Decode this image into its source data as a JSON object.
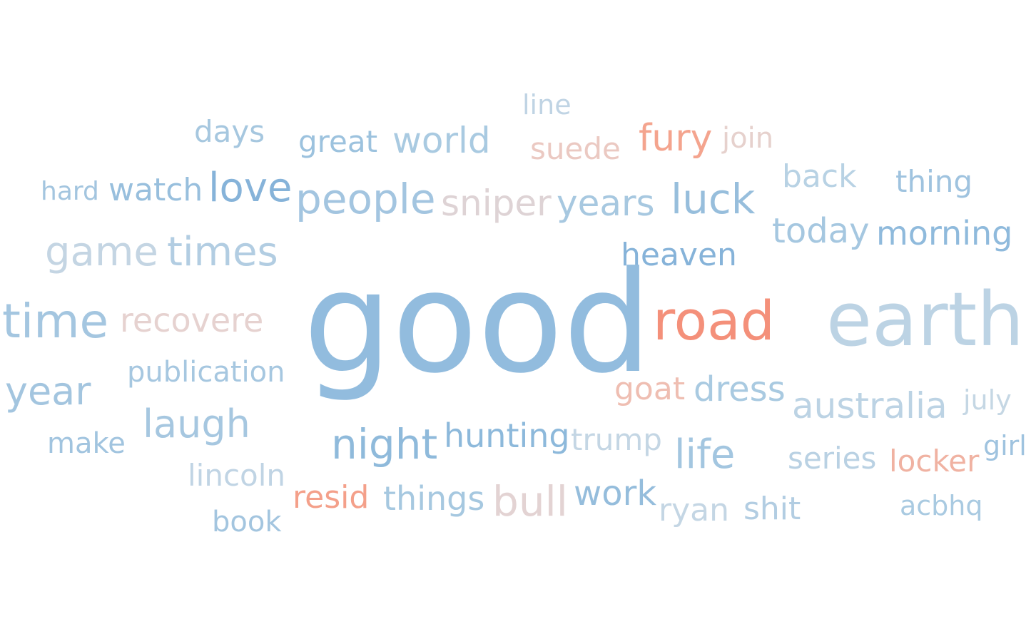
{
  "words": [
    {
      "text": "line",
      "color": "#c0d4e4"
    },
    {
      "text": "days",
      "color": "#a6c7df"
    },
    {
      "text": "great",
      "color": "#9cc2de"
    },
    {
      "text": "world",
      "color": "#a9cae1"
    },
    {
      "text": "suede",
      "color": "#ebc9c2"
    },
    {
      "text": "fury",
      "color": "#f4a48e"
    },
    {
      "text": "join",
      "color": "#e6d1cd"
    },
    {
      "text": "back",
      "color": "#b8d2e4"
    },
    {
      "text": "thing",
      "color": "#9fc3df"
    },
    {
      "text": "hard",
      "color": "#a3c5df"
    },
    {
      "text": "watch",
      "color": "#98bfdd"
    },
    {
      "text": "love",
      "color": "#86b3d9"
    },
    {
      "text": "people",
      "color": "#a3c5e0"
    },
    {
      "text": "sniper",
      "color": "#ded3d5"
    },
    {
      "text": "years",
      "color": "#a7c8e0"
    },
    {
      "text": "luck",
      "color": "#97bedc"
    },
    {
      "text": "today",
      "color": "#a5c7e0"
    },
    {
      "text": "morning",
      "color": "#8fbadc"
    },
    {
      "text": "game",
      "color": "#c4d5e3"
    },
    {
      "text": "times",
      "color": "#b2cde2"
    },
    {
      "text": "heaven",
      "color": "#86b3d9"
    },
    {
      "text": "time",
      "color": "#a4c6e0"
    },
    {
      "text": "recovere",
      "color": "#e6d2d0"
    },
    {
      "text": "good",
      "color": "#92bcde"
    },
    {
      "text": "road",
      "color": "#f4907a"
    },
    {
      "text": "earth",
      "color": "#bcd3e4"
    },
    {
      "text": "publication",
      "color": "#a6c7e0"
    },
    {
      "text": "year",
      "color": "#a3c5df"
    },
    {
      "text": "goat",
      "color": "#efbeb2"
    },
    {
      "text": "dress",
      "color": "#a9cae1"
    },
    {
      "text": "australia",
      "color": "#bcd3e4"
    },
    {
      "text": "july",
      "color": "#c5d7e4"
    },
    {
      "text": "laugh",
      "color": "#a6c7e0"
    },
    {
      "text": "night",
      "color": "#8fbadb"
    },
    {
      "text": "hunting",
      "color": "#8db9db"
    },
    {
      "text": "trump",
      "color": "#c4d6e4"
    },
    {
      "text": "life",
      "color": "#a3c6e0"
    },
    {
      "text": "make",
      "color": "#a1c4df"
    },
    {
      "text": "series",
      "color": "#b9d1e3"
    },
    {
      "text": "locker",
      "color": "#f0b2a2"
    },
    {
      "text": "girl",
      "color": "#9fc3df"
    },
    {
      "text": "lincoln",
      "color": "#c0d4e4"
    },
    {
      "text": "resid",
      "color": "#f4a08a"
    },
    {
      "text": "things",
      "color": "#a6c8e0"
    },
    {
      "text": "bull",
      "color": "#e3d3d3"
    },
    {
      "text": "work",
      "color": "#95bddc"
    },
    {
      "text": "ryan",
      "color": "#c4d6e4"
    },
    {
      "text": "shit",
      "color": "#b2cde2"
    },
    {
      "text": "acbhq",
      "color": "#a9cae1"
    },
    {
      "text": "book",
      "color": "#a3c5df"
    }
  ]
}
